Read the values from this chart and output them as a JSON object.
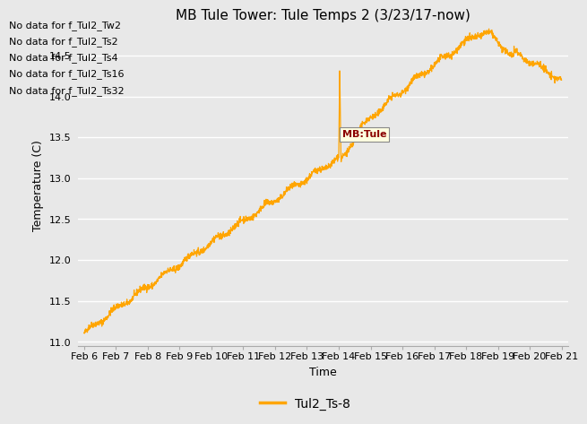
{
  "title": "MB Tule Tower: Tule Temps 2 (3/23/17-now)",
  "xlabel": "Time",
  "ylabel": "Temperature (C)",
  "ylim": [
    10.95,
    14.88
  ],
  "x_tick_labels": [
    "Feb 6",
    "Feb 7",
    "Feb 8",
    "Feb 9",
    "Feb 10",
    "Feb 11",
    "Feb 12",
    "Feb 13",
    "Feb 14",
    "Feb 15",
    "Feb 16",
    "Feb 17",
    "Feb 18",
    "Feb 19",
    "Feb 20",
    "Feb 21"
  ],
  "line_color": "#FFA500",
  "legend_label": "Tul2_Ts-8",
  "no_data_texts": [
    "No data for f_Tul2_Tw2",
    "No data for f_Tul2_Ts2",
    "No data for f_Tul2_Ts4",
    "No data for f_Tul2_Ts16",
    "No data for f_Tul2_Ts32"
  ],
  "tooltip_text": "MB:Tule",
  "bg_color": "#e8e8e8",
  "title_fontsize": 11,
  "axis_fontsize": 9,
  "tick_fontsize": 8,
  "nodata_fontsize": 8
}
